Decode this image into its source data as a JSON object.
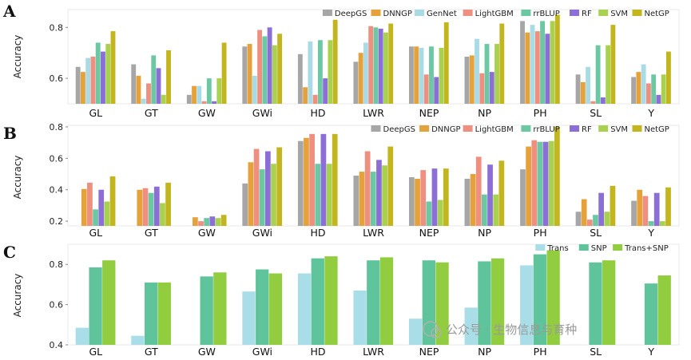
{
  "watermark": "公众号 · 生物信息与育种",
  "colors": {
    "DeepGS": "#a6a6a6",
    "DNNGP": "#e5a13a",
    "GenNet": "#a8dbe6",
    "LightGBM": "#ef8f7f",
    "rrBLUP": "#6cc8a3",
    "RF": "#8b6fd6",
    "SVM": "#a8d150",
    "NetGP": "#c2b51e",
    "Trans": "#a9dde7",
    "SNP": "#5fc49b",
    "Trans+SNP": "#92cc3f"
  },
  "chart_data": [
    {
      "panel": "A",
      "type": "bar",
      "title": "",
      "xlabel": "",
      "ylabel": "Accuracy",
      "ylim": [
        0.5,
        0.87
      ],
      "yticks": [
        "0.6",
        "0.8"
      ],
      "ytick_values": [
        0.6,
        0.8
      ],
      "legend_position": "top-right",
      "categories": [
        "GL",
        "GT",
        "GW",
        "GWi",
        "HD",
        "LWR",
        "NEP",
        "NP",
        "PH",
        "SL",
        "Y"
      ],
      "series": [
        {
          "name": "DeepGS",
          "values": [
            0.645,
            0.655,
            0.535,
            0.725,
            0.695,
            0.665,
            0.725,
            0.685,
            0.825,
            0.615,
            0.605
          ]
        },
        {
          "name": "DNNGP",
          "values": [
            0.625,
            0.61,
            0.57,
            0.735,
            0.565,
            0.7,
            0.725,
            0.69,
            0.78,
            0.585,
            0.625
          ]
        },
        {
          "name": "GenNet",
          "values": [
            0.68,
            0.52,
            0.57,
            0.61,
            0.745,
            0.74,
            0.72,
            0.755,
            0.81,
            0.645,
            0.655
          ]
        },
        {
          "name": "LightGBM",
          "values": [
            0.685,
            0.58,
            0.51,
            0.79,
            0.535,
            0.805,
            0.615,
            0.62,
            0.785,
            0.51,
            0.58
          ]
        },
        {
          "name": "rrBLUP",
          "values": [
            0.74,
            0.69,
            0.6,
            0.765,
            0.75,
            0.8,
            0.725,
            0.735,
            0.825,
            0.73,
            0.615
          ]
        },
        {
          "name": "RF",
          "values": [
            0.705,
            0.64,
            0.51,
            0.8,
            0.6,
            0.795,
            0.605,
            0.625,
            0.775,
            0.525,
            0.535
          ]
        },
        {
          "name": "SVM",
          "values": [
            0.735,
            0.535,
            0.6,
            0.73,
            0.75,
            0.78,
            0.72,
            0.735,
            0.825,
            0.73,
            0.615
          ]
        },
        {
          "name": "NetGP",
          "values": [
            0.785,
            0.71,
            0.74,
            0.775,
            0.83,
            0.815,
            0.82,
            0.815,
            0.85,
            0.81,
            0.705
          ]
        }
      ]
    },
    {
      "panel": "B",
      "type": "bar",
      "title": "",
      "xlabel": "",
      "ylabel": "Accuracy",
      "ylim": [
        0.17,
        0.81
      ],
      "yticks": [
        "0.2",
        "0.4",
        "0.6",
        "0.8"
      ],
      "ytick_values": [
        0.2,
        0.4,
        0.6,
        0.8
      ],
      "legend_position": "top-right",
      "categories": [
        "GL",
        "GT",
        "GW",
        "GWi",
        "HD",
        "LWR",
        "NEP",
        "NP",
        "PH",
        "SL",
        "Y"
      ],
      "series": [
        {
          "name": "DeepGS",
          "values": [
            0.17,
            0.17,
            0.17,
            0.44,
            0.71,
            0.49,
            0.48,
            0.47,
            0.53,
            0.26,
            0.33
          ]
        },
        {
          "name": "DNNGP",
          "values": [
            0.405,
            0.4,
            0.225,
            0.575,
            0.73,
            0.515,
            0.47,
            0.5,
            0.675,
            0.34,
            0.4
          ]
        },
        {
          "name": "LightGBM",
          "values": [
            0.445,
            0.41,
            0.2,
            0.66,
            0.755,
            0.645,
            0.525,
            0.61,
            0.715,
            0.21,
            0.36
          ]
        },
        {
          "name": "rrBLUP",
          "values": [
            0.275,
            0.38,
            0.22,
            0.53,
            0.565,
            0.515,
            0.325,
            0.37,
            0.705,
            0.24,
            0.2
          ]
        },
        {
          "name": "RF",
          "values": [
            0.4,
            0.42,
            0.23,
            0.645,
            0.755,
            0.59,
            0.535,
            0.56,
            0.705,
            0.38,
            0.38
          ]
        },
        {
          "name": "SVM",
          "values": [
            0.325,
            0.315,
            0.22,
            0.565,
            0.565,
            0.555,
            0.335,
            0.37,
            0.71,
            0.26,
            0.2
          ]
        },
        {
          "name": "NetGP",
          "values": [
            0.485,
            0.445,
            0.24,
            0.67,
            0.755,
            0.675,
            0.535,
            0.585,
            0.8,
            0.425,
            0.415
          ]
        }
      ]
    },
    {
      "panel": "C",
      "type": "bar",
      "title": "",
      "xlabel": "",
      "ylabel": "Accuracy",
      "ylim": [
        0.4,
        0.9
      ],
      "yticks": [
        "0.4",
        "0.6",
        "0.8"
      ],
      "ytick_values": [
        0.4,
        0.6,
        0.8
      ],
      "legend_position": "top-right",
      "categories": [
        "GL",
        "GT",
        "GW",
        "GWi",
        "HD",
        "LWR",
        "NEP",
        "NP",
        "PH",
        "SL",
        "Y"
      ],
      "series": [
        {
          "name": "Trans",
          "values": [
            0.485,
            0.445,
            0.4,
            0.665,
            0.755,
            0.67,
            0.53,
            0.585,
            0.795,
            0.4,
            0.4
          ]
        },
        {
          "name": "SNP",
          "values": [
            0.785,
            0.71,
            0.74,
            0.775,
            0.83,
            0.82,
            0.82,
            0.815,
            0.85,
            0.81,
            0.705
          ]
        },
        {
          "name": "Trans+SNP",
          "values": [
            0.82,
            0.71,
            0.76,
            0.755,
            0.84,
            0.835,
            0.81,
            0.83,
            0.87,
            0.82,
            0.745
          ]
        }
      ]
    }
  ]
}
